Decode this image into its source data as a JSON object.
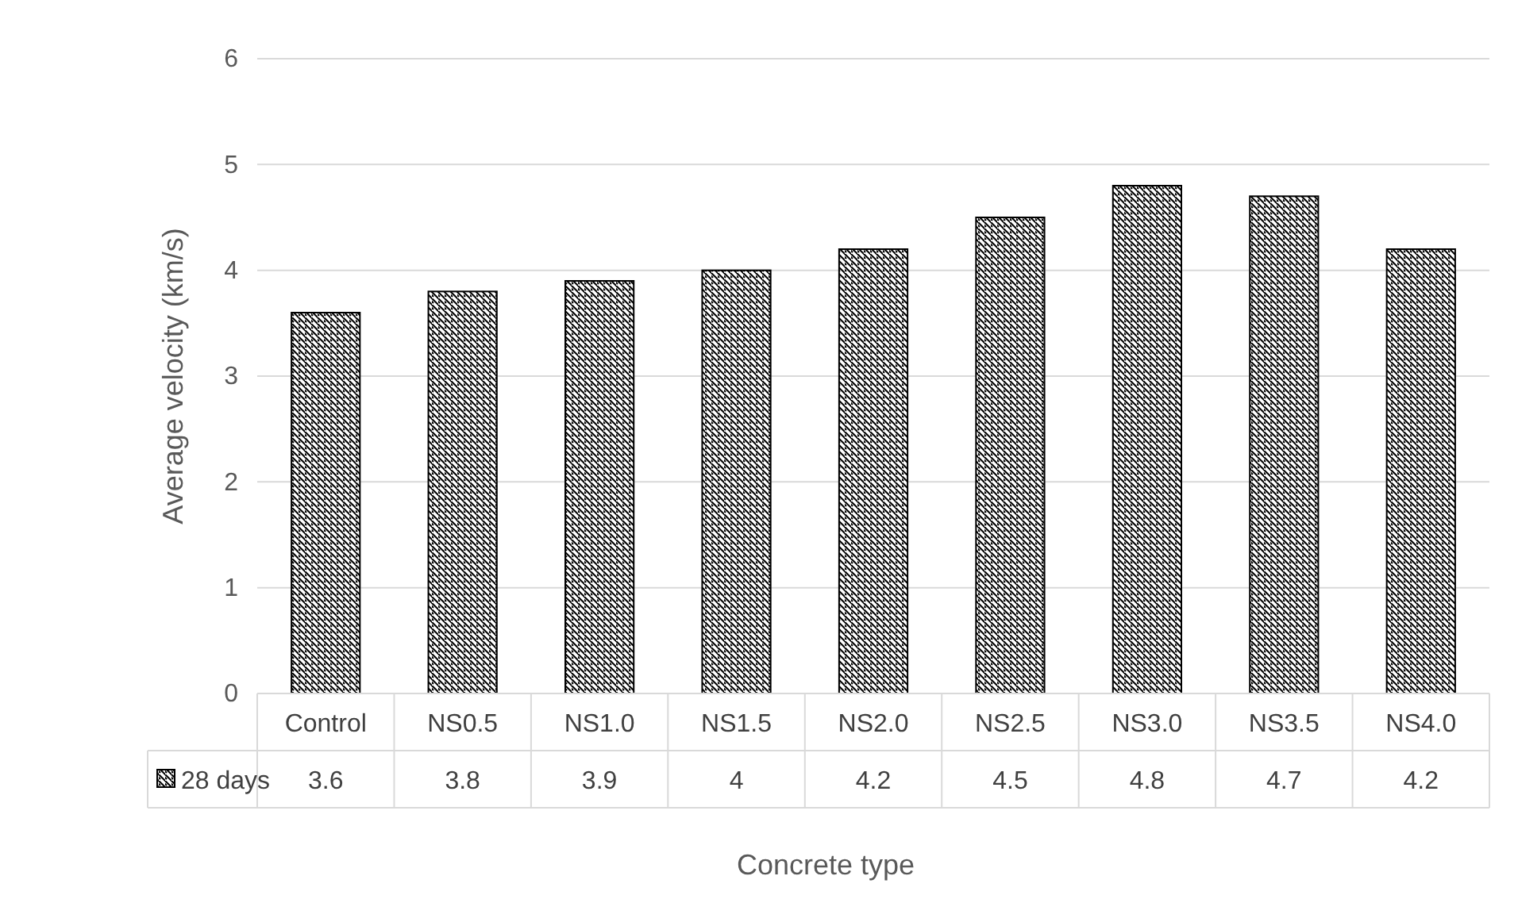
{
  "chart_data": {
    "type": "bar",
    "xlabel": "Concrete type",
    "ylabel": "Average velocity (km/s)",
    "categories": [
      "Control",
      "NS0.5",
      "NS1.0",
      "NS1.5",
      "NS2.0",
      "NS2.5",
      "NS3.0",
      "NS3.5",
      "NS4.0"
    ],
    "series": [
      {
        "name": "28 days",
        "color": "#000000",
        "values": [
          3.6,
          3.8,
          3.9,
          4,
          4.2,
          4.5,
          4.8,
          4.7,
          4.2
        ]
      }
    ],
    "ylim": [
      0,
      6
    ],
    "yticks": [
      0,
      1,
      2,
      3,
      4,
      5,
      6
    ],
    "grid": "y",
    "legend": "bottom",
    "data_labels": true
  }
}
